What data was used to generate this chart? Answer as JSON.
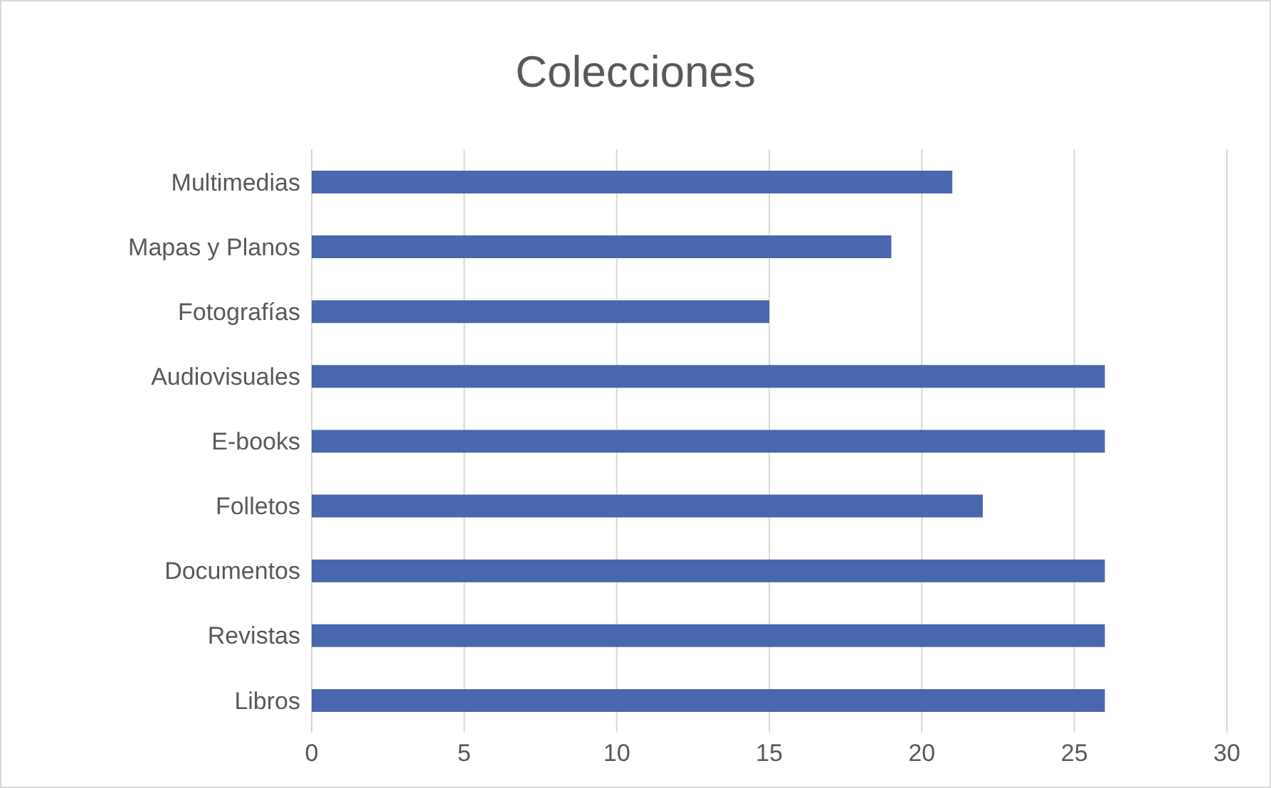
{
  "chart_data": {
    "type": "bar",
    "orientation": "horizontal",
    "title": "Colecciones",
    "categories": [
      "Multimedias",
      "Mapas y Planos",
      "Fotografías",
      "Audiovisuales",
      "E-books",
      "Folletos",
      "Documentos",
      "Revistas",
      "Libros"
    ],
    "values": [
      21,
      19,
      15,
      26,
      26,
      22,
      26,
      26,
      26
    ],
    "color": "#4a67ad",
    "xlim": [
      0,
      30
    ],
    "xticks": [
      0,
      5,
      10,
      15,
      20,
      25,
      30
    ],
    "grid": "x"
  }
}
